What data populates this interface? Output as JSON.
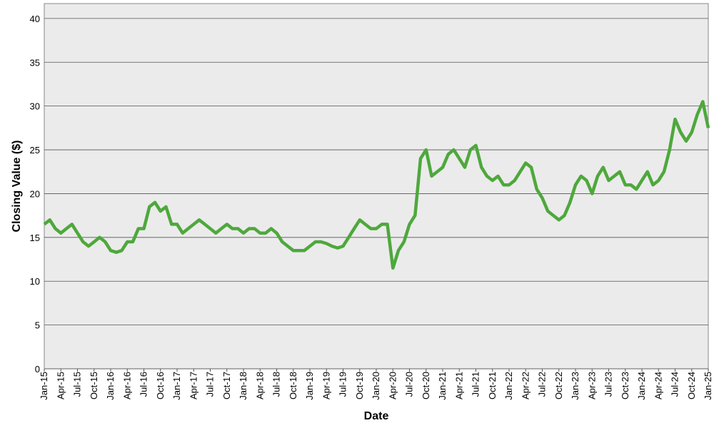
{
  "chart_data": {
    "type": "line",
    "x_label": "Date",
    "y_label": "Closing Value ($)",
    "categories": [
      "Jan-15",
      null,
      null,
      "Apr-15",
      null,
      null,
      "Jul-15",
      null,
      null,
      "Oct-15",
      null,
      null,
      "Jan-16",
      null,
      null,
      "Apr-16",
      null,
      null,
      "Jul-16",
      null,
      null,
      "Oct-16",
      null,
      null,
      "Jan-17",
      null,
      null,
      "Apr-17",
      null,
      null,
      "Jul-17",
      null,
      null,
      "Oct-17",
      null,
      null,
      "Jan-18",
      null,
      null,
      "Apr-18",
      null,
      null,
      "Jul-18",
      null,
      null,
      "Oct-18",
      null,
      null,
      "Jan-19",
      null,
      null,
      "Apr-19",
      null,
      null,
      "Jul-19",
      null,
      null,
      "Oct-19",
      null,
      null,
      "Jan-20",
      null,
      null,
      "Apr-20",
      null,
      null,
      "Jul-20",
      null,
      null,
      "Oct-20",
      null,
      null,
      "Jan-21",
      null,
      null,
      "Apr-21",
      null,
      null,
      "Jul-21",
      null,
      null,
      "Oct-21",
      null,
      null,
      "Jan-22",
      null,
      null,
      "Apr-22",
      null,
      null,
      "Jul-22",
      null,
      null,
      "Oct-22",
      null,
      null,
      "Jan-23",
      null,
      null,
      "Apr-23",
      null,
      null,
      "Jul-23",
      null,
      null,
      "Oct-23",
      null,
      null,
      "Jan-24",
      null,
      null,
      "Apr-24",
      null,
      null,
      "Jul-24",
      null,
      null,
      "Oct-24",
      null,
      null,
      "Jan-25"
    ],
    "series": [
      {
        "color": "#4ea83c",
        "values": [
          16.5,
          17,
          16,
          15.5,
          16,
          16.5,
          15.5,
          14.5,
          14,
          14.5,
          15,
          14.5,
          13.5,
          13.3,
          13.5,
          14.5,
          14.5,
          16,
          16,
          18.5,
          19,
          18,
          18.5,
          16.5,
          16.5,
          15.5,
          16,
          16.5,
          17,
          16.5,
          16,
          15.5,
          16,
          16.5,
          16,
          16,
          15.5,
          16,
          16,
          15.5,
          15.5,
          16,
          15.5,
          14.5,
          14,
          13.5,
          13.5,
          13.5,
          14,
          14.5,
          14.5,
          14.3,
          14,
          13.8,
          14,
          15,
          16,
          17,
          16.5,
          16,
          16,
          16.5,
          16.5,
          11.5,
          13.5,
          14.5,
          16.5,
          17.5,
          24,
          25,
          22,
          22.5,
          23,
          24.5,
          25,
          24,
          23,
          25,
          25.5,
          23,
          22,
          21.5,
          22,
          21,
          21,
          21.5,
          22.5,
          23.5,
          23,
          20.5,
          19.5,
          18,
          17.5,
          17,
          17.5,
          19,
          21,
          22,
          21.5,
          20,
          22,
          23,
          21.5,
          22,
          22.5,
          21,
          21,
          20.5,
          21.5,
          22.5,
          21,
          21.5,
          22.5,
          25,
          28.5,
          27,
          26,
          27,
          29,
          30.5,
          27.5
        ]
      }
    ],
    "ylim": [
      0,
      41.7
    ],
    "yticks": [
      0,
      5,
      10,
      15,
      20,
      25,
      30,
      35,
      40
    ],
    "grid": true
  }
}
